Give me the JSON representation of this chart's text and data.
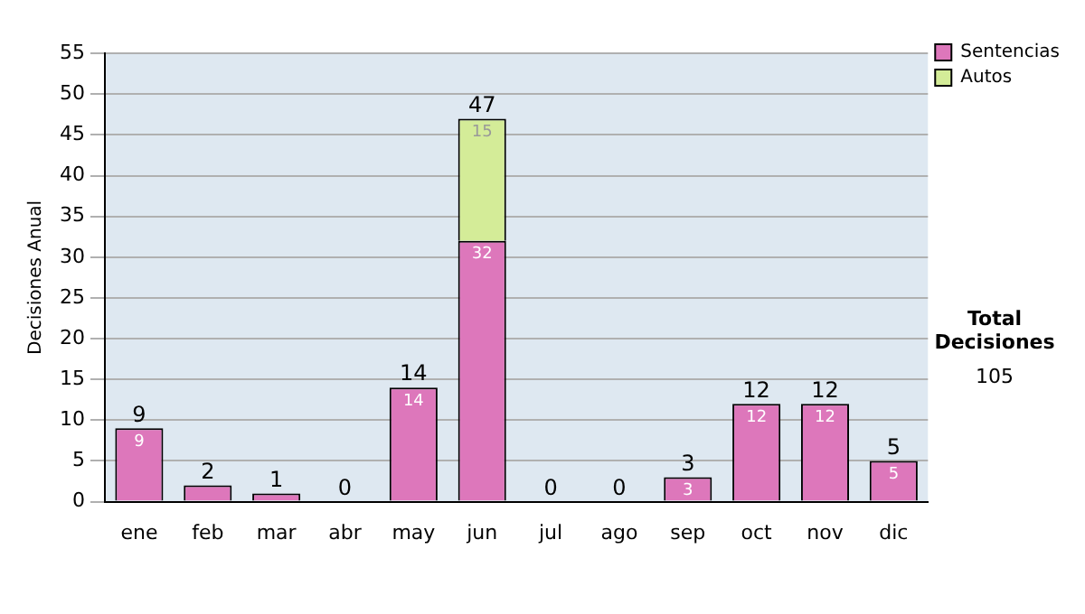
{
  "chart_data": {
    "type": "bar",
    "stacked": true,
    "ylabel": "Decisiones Anual",
    "categories": [
      "ene",
      "feb",
      "mar",
      "abr",
      "may",
      "jun",
      "jul",
      "ago",
      "sep",
      "oct",
      "nov",
      "dic"
    ],
    "series": [
      {
        "name": "Sentencias",
        "color": "#dd77bb",
        "values": [
          9,
          2,
          1,
          0,
          14,
          32,
          0,
          0,
          3,
          12,
          12,
          5
        ],
        "value_labels": [
          "9",
          null,
          null,
          null,
          "14",
          "32",
          null,
          null,
          "3",
          "12",
          "12",
          "5"
        ]
      },
      {
        "name": "Autos",
        "color": "#d4ec98",
        "values": [
          0,
          0,
          0,
          0,
          0,
          15,
          0,
          0,
          0,
          0,
          0,
          0
        ],
        "value_labels": [
          null,
          null,
          null,
          null,
          null,
          "15",
          null,
          null,
          null,
          null,
          null,
          null
        ]
      }
    ],
    "totals": [
      "9",
      "2",
      "1",
      "0",
      "14",
      "47",
      "0",
      "0",
      "3",
      "12",
      "12",
      "5"
    ],
    "ylim": [
      0,
      55
    ],
    "yticks": [
      0,
      5,
      10,
      15,
      20,
      25,
      30,
      35,
      40,
      45,
      50,
      55
    ],
    "grid": "y",
    "legend": "right",
    "annotations": [
      "Total Decisiones",
      "105"
    ]
  }
}
